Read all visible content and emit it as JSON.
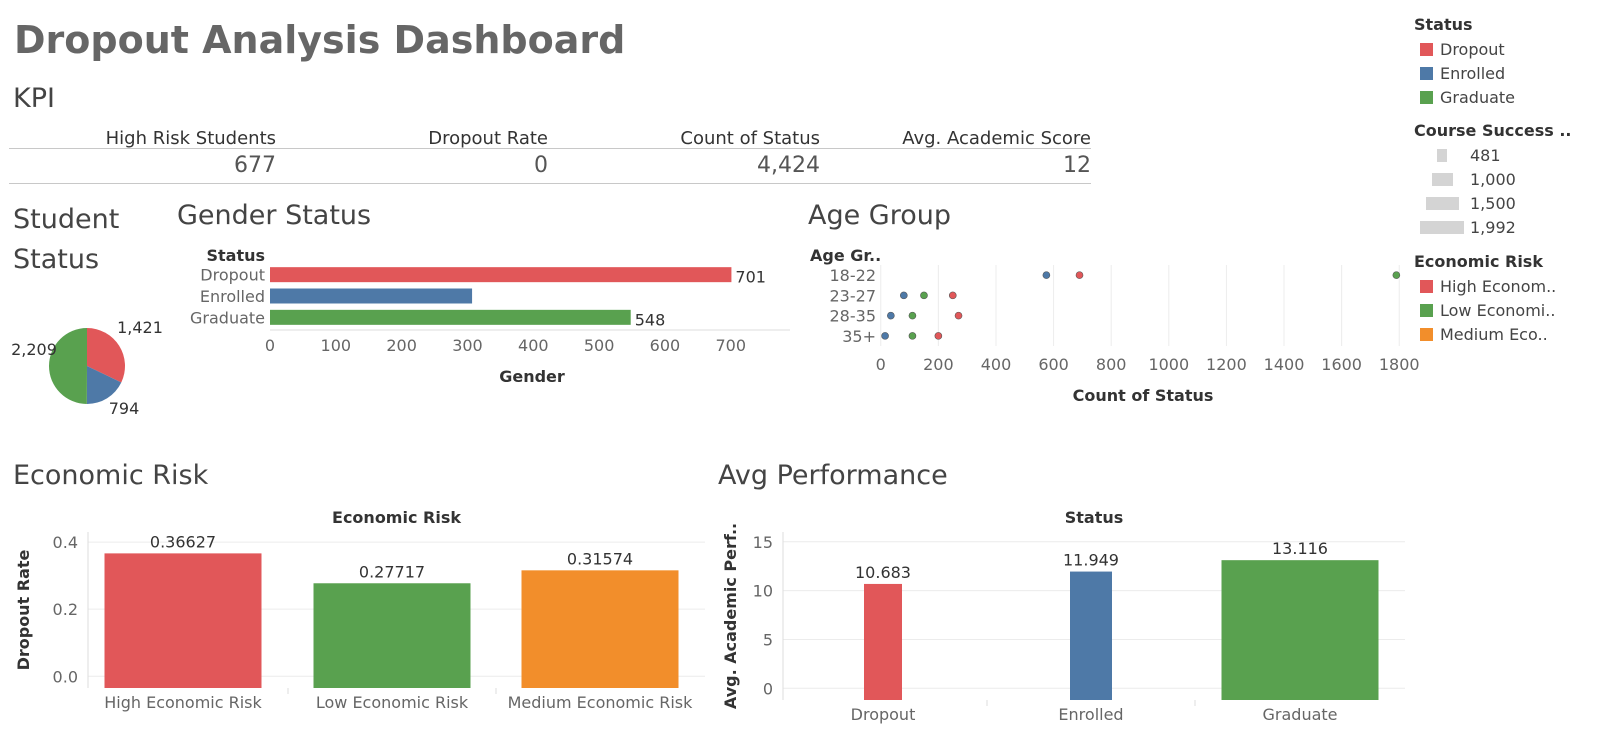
{
  "dashboard": {
    "title": "Dropout Analysis Dashboard"
  },
  "kpi": {
    "section_title": "KPI",
    "items": [
      {
        "label": "High Risk Students",
        "value": "677"
      },
      {
        "label": "Dropout Rate",
        "value": "0"
      },
      {
        "label": "Count of Status",
        "value": "4,424"
      },
      {
        "label": "Avg. Academic Score",
        "value": "12"
      }
    ]
  },
  "sections": {
    "student_status": "Student Status",
    "gender_status": "Gender Status",
    "age_group": "Age Group",
    "economic_risk": "Economic Risk",
    "avg_performance": "Avg Performance"
  },
  "colors": {
    "dropout": "#e15759",
    "enrolled": "#4e79a7",
    "graduate": "#59a14f",
    "medium": "#f28e2b",
    "size_marker": "#d4d4d4",
    "grid": "#ececec"
  },
  "legend": {
    "status_title": "Status",
    "status_items": [
      "Dropout",
      "Enrolled",
      "Graduate"
    ],
    "course_title": "Course Success ..",
    "course_items": [
      "481",
      "1,000",
      "1,500",
      "1,992"
    ],
    "econ_title": "Economic Risk",
    "econ_items": [
      "High Econom..",
      "Low Economi..",
      "Medium Eco.."
    ]
  },
  "chart_data": [
    {
      "id": "student_status",
      "type": "pie",
      "title": "Student Status",
      "categories": [
        "Dropout",
        "Enrolled",
        "Graduate"
      ],
      "values": [
        1421,
        794,
        2209
      ],
      "labels": [
        "1,421",
        "794",
        "2,209"
      ]
    },
    {
      "id": "gender_status",
      "type": "bar",
      "orientation": "horizontal",
      "title": "Gender Status",
      "ylabel": "Status",
      "xlabel": "Gender",
      "categories": [
        "Dropout",
        "Enrolled",
        "Graduate"
      ],
      "values": [
        701,
        307,
        548
      ],
      "data_labels": [
        "701",
        "",
        "548"
      ],
      "xlim": [
        0,
        790
      ],
      "ticks": [
        0,
        100,
        200,
        300,
        400,
        500,
        600,
        700
      ]
    },
    {
      "id": "age_group",
      "type": "scatter",
      "title": "Age Group",
      "ylabel": "Age Gr..",
      "xlabel": "Count of Status",
      "categories": [
        "18-22",
        "23-27",
        "28-35",
        "35+"
      ],
      "series": [
        {
          "name": "Dropout",
          "values": [
            690,
            250,
            270,
            200
          ]
        },
        {
          "name": "Enrolled",
          "values": [
            575,
            80,
            35,
            15
          ]
        },
        {
          "name": "Graduate",
          "values": [
            1790,
            150,
            110,
            110
          ]
        }
      ],
      "xlim": [
        -20,
        1820
      ],
      "ticks": [
        0,
        200,
        400,
        600,
        800,
        1000,
        1200,
        1400,
        1600,
        1800
      ],
      "grid": true
    },
    {
      "id": "economic_risk",
      "type": "bar",
      "title": "Economic Risk",
      "header": "Economic Risk",
      "ylabel": "Dropout Rate",
      "categories": [
        "High Economic Risk",
        "Low Economic Risk",
        "Medium Economic Risk"
      ],
      "values": [
        0.36627,
        0.27717,
        0.31574
      ],
      "data_labels": [
        "0.36627",
        "0.27717",
        "0.31574"
      ],
      "ylim": [
        -0.035,
        0.43
      ],
      "ticks": [
        0.0,
        0.2,
        0.4
      ],
      "tick_labels": [
        "0.0",
        "0.2",
        "0.4"
      ]
    },
    {
      "id": "avg_performance",
      "type": "bar",
      "title": "Avg Performance",
      "header": "Status",
      "ylabel": "Avg. Academic Perf..",
      "categories": [
        "Dropout",
        "Enrolled",
        "Graduate"
      ],
      "values": [
        10.683,
        11.949,
        13.116
      ],
      "data_labels": [
        "10.683",
        "11.949",
        "13.116"
      ],
      "ylim": [
        -1.2,
        16
      ],
      "ticks": [
        0,
        5,
        10,
        15
      ]
    }
  ]
}
